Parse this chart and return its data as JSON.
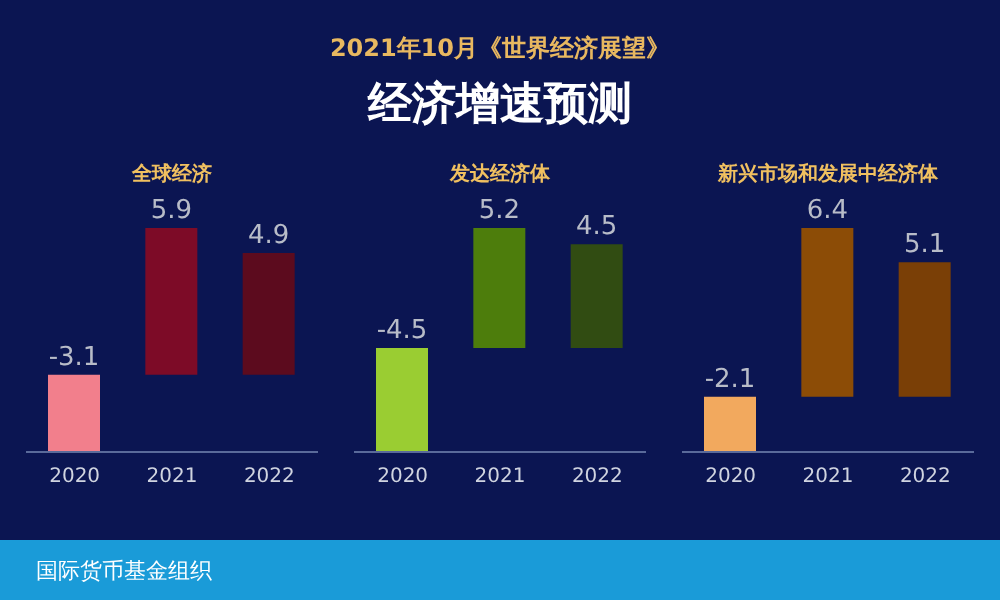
{
  "chart_data": [
    {
      "type": "other",
      "title": "经济增速预测",
      "subtitle": "2021年10月《世界经济展望》",
      "annotations": [
        "国际货币基金组织"
      ]
    },
    {
      "type": "bar",
      "title": "全球经济",
      "categories": [
        "2020",
        "2021",
        "2022"
      ],
      "values": [
        -3.1,
        5.9,
        4.9
      ],
      "colors": [
        "#f27f8c",
        "#7d0b27",
        "#5c0b1e"
      ],
      "data_labels": true,
      "tick_labels": "x"
    },
    {
      "type": "bar",
      "title": "发达经济体",
      "categories": [
        "2020",
        "2021",
        "2022"
      ],
      "values": [
        -4.5,
        5.2,
        4.5
      ],
      "colors": [
        "#9acd32",
        "#4d7d0c",
        "#314c12"
      ],
      "data_labels": true,
      "tick_labels": "x"
    },
    {
      "type": "bar",
      "title": "新兴市场和发展中经济体",
      "categories": [
        "2020",
        "2021",
        "2022"
      ],
      "values": [
        -2.1,
        6.4,
        5.1
      ],
      "colors": [
        "#f2a95e",
        "#8c4c06",
        "#7a3f06"
      ],
      "data_labels": true,
      "tick_labels": "x"
    }
  ]
}
